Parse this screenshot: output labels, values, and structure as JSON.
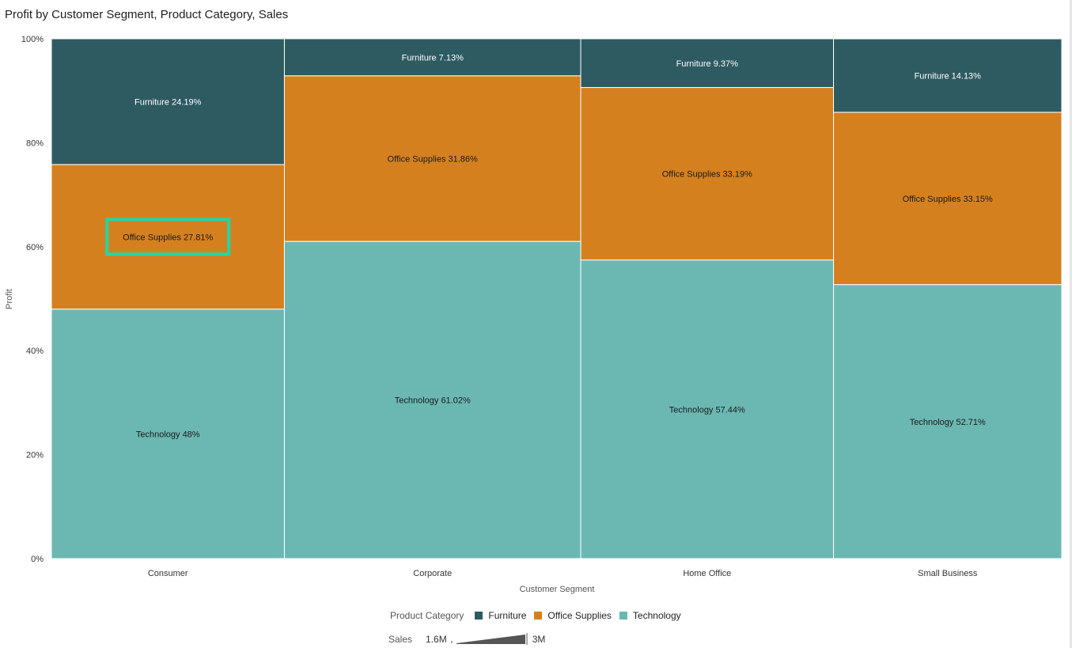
{
  "title": "Profit by Customer Segment, Product Category, Sales",
  "colors": {
    "Furniture": "#2e5b62",
    "Office Supplies": "#d5801f",
    "Technology": "#6bb8b3",
    "highlight": "#1fd8a6"
  },
  "legend": {
    "heading": "Product Category",
    "items": [
      "Furniture",
      "Office Supplies",
      "Technology"
    ]
  },
  "size_legend": {
    "heading": "Sales",
    "min_label": "1.6M",
    "max_label": "3M"
  },
  "chart_data": {
    "type": "mosaic",
    "title": "Profit by Customer Segment, Product Category, Sales",
    "xlabel": "Customer Segment",
    "ylabel": "Profit",
    "yticks": [
      "0%",
      "20%",
      "40%",
      "60%",
      "80%",
      "100%"
    ],
    "ylim": [
      0,
      100
    ],
    "categories": [
      "Consumer",
      "Corporate",
      "Home Office",
      "Small Business"
    ],
    "widths": [
      294,
      374,
      319,
      288
    ],
    "series": [
      {
        "name": "Technology",
        "values": [
          48,
          61.02,
          57.44,
          52.71
        ],
        "labels": [
          "Technology 48%",
          "Technology 61.02%",
          "Technology 57.44%",
          "Technology 52.71%"
        ]
      },
      {
        "name": "Office Supplies",
        "values": [
          27.81,
          31.86,
          33.19,
          33.15
        ],
        "labels": [
          "Office Supplies 27.81%",
          "Office Supplies 31.86%",
          "Office Supplies 33.19%",
          "Office Supplies 33.15%"
        ]
      },
      {
        "name": "Furniture",
        "values": [
          24.19,
          7.13,
          9.37,
          14.13
        ],
        "labels": [
          "Furniture 24.19%",
          "Furniture 7.13%",
          "Furniture 9.37%",
          "Furniture 14.13%"
        ]
      }
    ],
    "selected": {
      "category": "Consumer",
      "series": "Office Supplies"
    }
  }
}
